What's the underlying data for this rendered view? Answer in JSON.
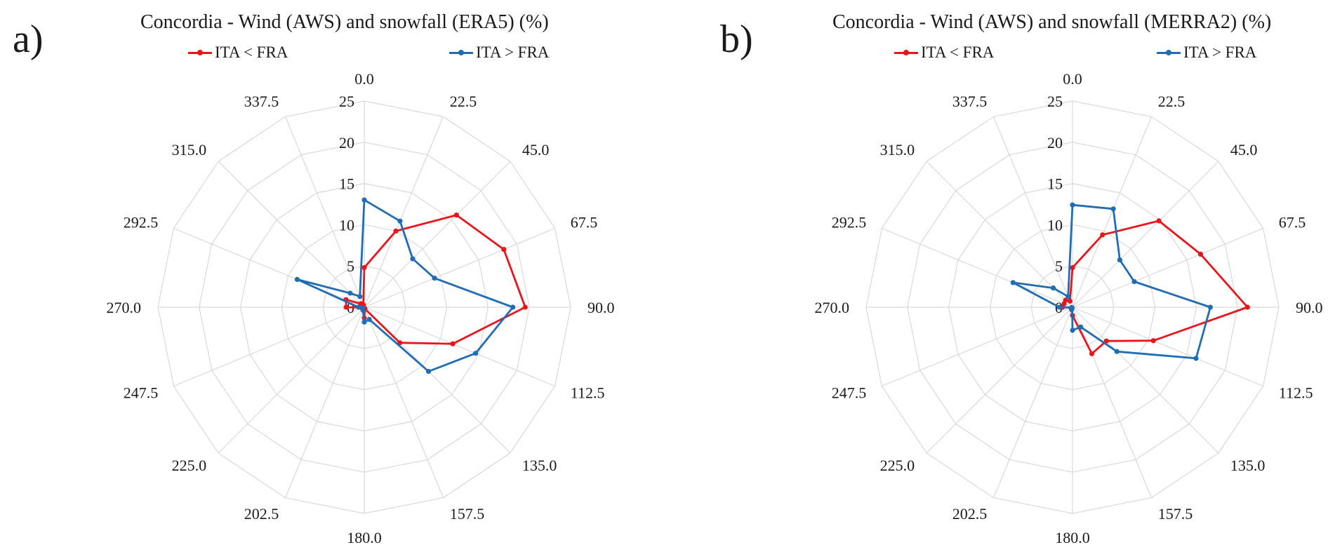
{
  "chart_data": [
    {
      "panel": "a)",
      "type": "radar",
      "title": "Concordia - Wind (AWS) and snowfall (ERA5) (%)",
      "categories": [
        "0.0",
        "22.5",
        "45.0",
        "67.5",
        "90.0",
        "112.5",
        "135.0",
        "157.5",
        "180.0",
        "202.5",
        "225.0",
        "247.5",
        "270.0",
        "292.5",
        "315.0",
        "337.5"
      ],
      "radial_ticks": [
        "0",
        "5",
        "10",
        "15",
        "20",
        "25"
      ],
      "rlim": [
        0,
        25
      ],
      "grid": true,
      "legend_position": "top",
      "series": [
        {
          "name": "ITA < FRA",
          "color": "#e8151b",
          "values": [
            4.8,
            10.0,
            15.8,
            18.3,
            19.5,
            11.6,
            6.1,
            0.2,
            1.3,
            0.1,
            0.1,
            0.1,
            2.2,
            2.4,
            0.6,
            0.3
          ]
        },
        {
          "name": "ITA > FRA",
          "color": "#1f6db5",
          "values": [
            13.0,
            11.3,
            8.3,
            9.2,
            18.0,
            14.6,
            11.0,
            1.6,
            1.8,
            0.4,
            0.3,
            0.2,
            0.7,
            8.8,
            2.4,
            1.4
          ]
        }
      ]
    },
    {
      "panel": "b)",
      "type": "radar",
      "title": "Concordia - Wind (AWS) and snowfall (MERRA2) (%)",
      "categories": [
        "0.0",
        "22.5",
        "45.0",
        "67.5",
        "90.0",
        "112.5",
        "135.0",
        "157.5",
        "180.0",
        "202.5",
        "225.0",
        "247.5",
        "270.0",
        "292.5",
        "315.0",
        "337.5"
      ],
      "radial_ticks": [
        "0",
        "5",
        "10",
        "15",
        "20",
        "25"
      ],
      "rlim": [
        0,
        25
      ],
      "grid": true,
      "legend_position": "top",
      "series": [
        {
          "name": "ITA < FRA",
          "color": "#e8151b",
          "values": [
            4.8,
            9.5,
            14.8,
            16.8,
            21.2,
            10.6,
            5.8,
            6.1,
            1.0,
            0.3,
            0.2,
            0.1,
            1.2,
            1.1,
            1.2,
            0.8
          ]
        },
        {
          "name": "ITA > FRA",
          "color": "#1f6db5",
          "values": [
            12.4,
            12.9,
            8.1,
            8.1,
            16.7,
            16.2,
            7.6,
            2.6,
            2.8,
            0.1,
            0.2,
            0.1,
            1.6,
            7.8,
            3.3,
            1.4
          ]
        }
      ]
    }
  ]
}
